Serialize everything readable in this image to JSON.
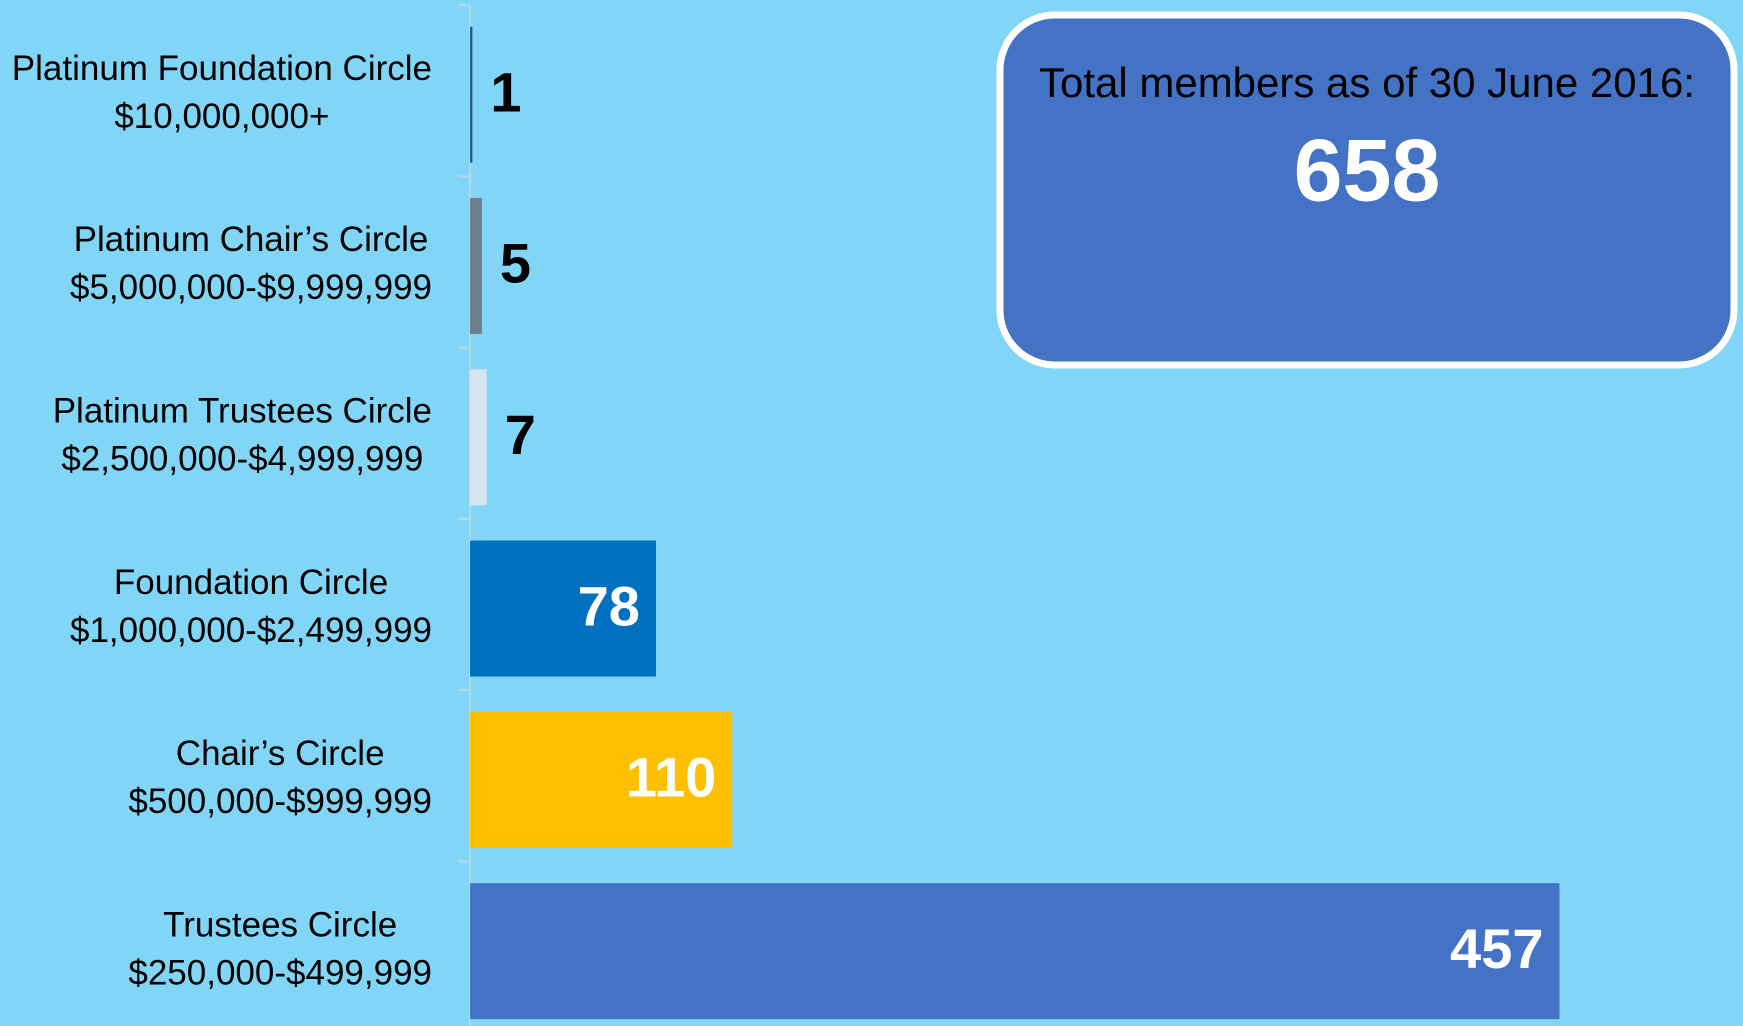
{
  "chart_data": {
    "type": "barh",
    "categories": [
      [
        "Platinum Foundation Circle",
        "$10,000,000+"
      ],
      [
        "Platinum Chair’s Circle",
        "$5,000,000-$9,999,999"
      ],
      [
        "Platinum Trustees Circle",
        "$2,500,000-$4,999,999"
      ],
      [
        "Foundation Circle",
        "$1,000,000-$2,499,999"
      ],
      [
        "Chair’s Circle",
        "$500,000-$999,999"
      ],
      [
        "Trustees Circle",
        "$250,000-$499,999"
      ]
    ],
    "values": [
      1,
      5,
      7,
      78,
      110,
      457
    ],
    "colors": [
      "#2f5597",
      "#6d7f8f",
      "#d6e4ef",
      "#0070c0",
      "#ffc000",
      "#4472c4"
    ],
    "xlim": [
      0,
      500
    ],
    "annotation": {
      "title": "Total members as of 30 June 2016:",
      "value": "658"
    }
  }
}
